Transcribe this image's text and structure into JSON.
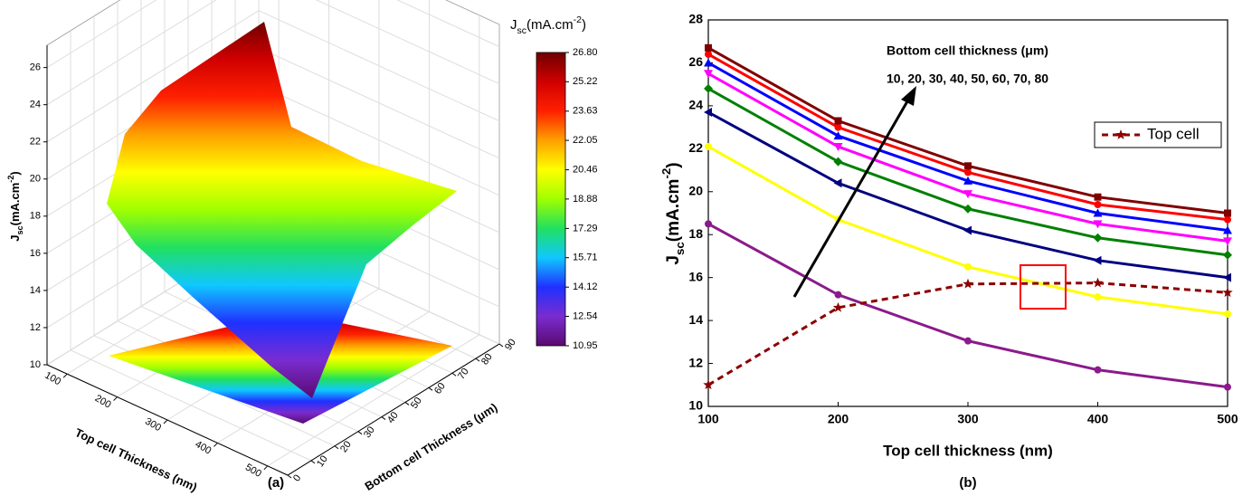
{
  "chart_data": [
    {
      "type": "surface3d",
      "z_label": {
        "base": "J",
        "sub": "sc",
        "rest": "(mA.cm",
        "sup": "-2",
        "end": ")"
      },
      "x_label": "Top cell Thickness (nm)",
      "y_label": "Bottom cell Thickness (μm)",
      "xlim": [
        60,
        540
      ],
      "xticks": [
        100,
        200,
        300,
        400,
        500
      ],
      "ylim": [
        0,
        90
      ],
      "yticks": [
        0,
        10,
        20,
        30,
        40,
        50,
        60,
        70,
        80,
        90
      ],
      "zlim": [
        10,
        27.2
      ],
      "zticks": [
        10,
        12,
        14,
        16,
        18,
        20,
        22,
        24,
        26
      ],
      "colorbar": {
        "title": {
          "base": "J",
          "sub": "sc",
          "rest": "(mA.cm",
          "sup": "-2",
          "end": ")"
        },
        "lim": [
          10.95,
          26.8
        ],
        "ticks": [
          {
            "value": 26.8,
            "label": "26.80"
          },
          25.22,
          23.63,
          22.05,
          20.46,
          18.88,
          17.29,
          15.71,
          14.12,
          12.54,
          10.95
        ],
        "colors": [
          "#5a0a6e",
          "#7a2cd0",
          "#2030ff",
          "#10c8ff",
          "#20e060",
          "#a0ff00",
          "#ffff00",
          "#ffa000",
          "#ff2000",
          "#d00000",
          "#6e0000"
        ]
      },
      "grid": true,
      "caption": "(a)"
    },
    {
      "type": "line",
      "x": [
        100,
        200,
        300,
        400,
        500
      ],
      "xlim": [
        100,
        500
      ],
      "xticks": [
        100,
        200,
        300,
        400,
        500
      ],
      "ylim": [
        10,
        28
      ],
      "yticks": [
        10,
        12,
        14,
        16,
        18,
        20,
        22,
        24,
        26,
        28
      ],
      "x_label": "Top cell thickness (nm)",
      "y_label": {
        "base": "J",
        "sub": "sc",
        "rest": "(mA.cm",
        "sup": "-2",
        "end": ")"
      },
      "annotations": [
        "Bottom cell thickness (μm)",
        "10, 20, 30, 40, 50, 60, 70, 80"
      ],
      "legend": "upper right",
      "series": [
        {
          "color": "#8b1a8b",
          "marker": "circle",
          "values": [
            18.5,
            15.2,
            13.05,
            11.7,
            10.9
          ]
        },
        {
          "color": "#ffff00",
          "marker": "circle",
          "values": [
            22.1,
            18.7,
            16.5,
            15.1,
            14.3
          ]
        },
        {
          "color": "#000080",
          "marker": "triangle-left",
          "values": [
            23.7,
            20.4,
            18.2,
            16.8,
            16.0
          ]
        },
        {
          "color": "#008000",
          "marker": "diamond",
          "values": [
            24.8,
            21.4,
            19.2,
            17.85,
            17.05
          ]
        },
        {
          "color": "#ff00ff",
          "marker": "triangle-down",
          "values": [
            25.5,
            22.1,
            19.9,
            18.5,
            17.7
          ]
        },
        {
          "color": "#0000ff",
          "marker": "triangle",
          "values": [
            26.0,
            22.6,
            20.5,
            19.0,
            18.2
          ]
        },
        {
          "color": "#ff0000",
          "marker": "circle",
          "values": [
            26.4,
            23.0,
            20.9,
            19.4,
            18.7
          ]
        },
        {
          "color": "#800000",
          "marker": "square",
          "values": [
            26.7,
            23.3,
            21.2,
            19.75,
            19.0
          ]
        },
        {
          "name": "Top cell",
          "color": "#8b0000",
          "marker": "star",
          "dashed": true,
          "values": [
            11.0,
            14.6,
            15.7,
            15.75,
            15.3
          ]
        }
      ],
      "caption": "(b)"
    }
  ]
}
